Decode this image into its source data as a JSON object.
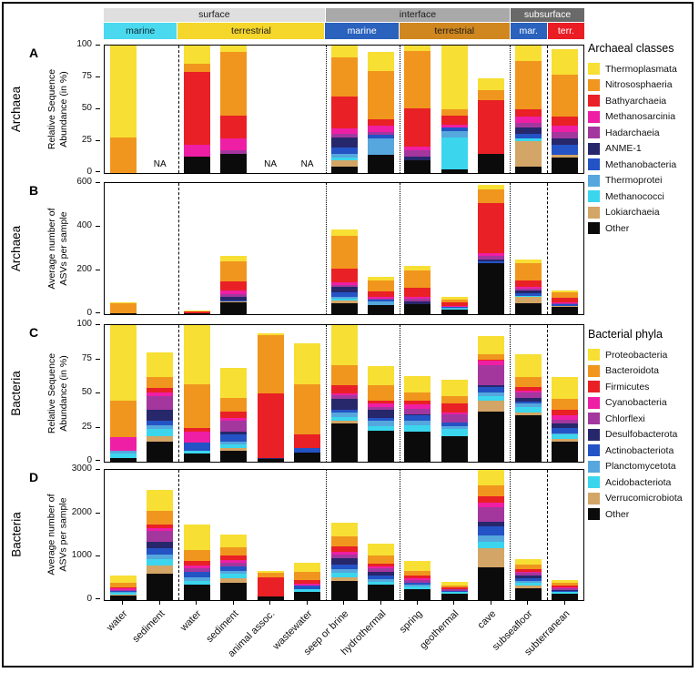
{
  "categories": [
    "water",
    "sediment",
    "water",
    "sediment",
    "animal assoc.",
    "wastewater",
    "seep or brine",
    "hydrothermal",
    "spring",
    "geothermal",
    "cave",
    "subseafloor",
    "subterranean"
  ],
  "headers": {
    "row1": [
      {
        "label": "surface",
        "span": 6,
        "bg": "#DFDFDF",
        "fg": "#1a1a1a"
      },
      {
        "label": "interface",
        "span": 5,
        "bg": "#A9A9A9",
        "fg": "#1a1a1a"
      },
      {
        "label": "subsurface",
        "span": 2,
        "bg": "#696969",
        "fg": "#ffffff"
      }
    ],
    "row2": [
      {
        "label": "marine",
        "span": 2,
        "bg": "#4AD9EF",
        "fg": "#0d2a33"
      },
      {
        "label": "terrestrial",
        "span": 4,
        "bg": "#F5D62B",
        "fg": "#1a1a1a"
      },
      {
        "label": "marine",
        "span": 2,
        "bg": "#2A62BE",
        "fg": "#ffffff"
      },
      {
        "label": "terrestrial",
        "span": 3,
        "bg": "#D0871F",
        "fg": "#1a1a1a"
      },
      {
        "label": "mar.",
        "span": 1,
        "bg": "#2A62BE",
        "fg": "#ffffff"
      },
      {
        "label": "terr.",
        "span": 1,
        "bg": "#EA1C24",
        "fg": "#ffffff"
      }
    ]
  },
  "separators": [
    {
      "after": 2,
      "style": "dashed"
    },
    {
      "after": 6,
      "style": "dotted"
    },
    {
      "after": 8,
      "style": "dotted"
    },
    {
      "after": 11,
      "style": "dotted"
    },
    {
      "after": 12,
      "style": "dashed"
    }
  ],
  "legend_archaea": {
    "title": "Archaeal classes",
    "items": [
      {
        "label": "Thermoplasmata",
        "color": "#F7DF34"
      },
      {
        "label": "Nitrososphaeria",
        "color": "#F0961E"
      },
      {
        "label": "Bathyarchaeia",
        "color": "#E92025"
      },
      {
        "label": "Methanosarcinia",
        "color": "#EE1FA4"
      },
      {
        "label": "Hadarchaeia",
        "color": "#A3379E"
      },
      {
        "label": "ANME-1",
        "color": "#27276B"
      },
      {
        "label": "Methanobacteria",
        "color": "#2453C5"
      },
      {
        "label": "Thermoprotei",
        "color": "#55A7DD"
      },
      {
        "label": "Methanococci",
        "color": "#3BD6ED"
      },
      {
        "label": "Lokiarchaeia",
        "color": "#D3A566"
      },
      {
        "label": "Other",
        "color": "#0B0B0B"
      }
    ]
  },
  "legend_bacteria": {
    "title": "Bacterial phyla",
    "items": [
      {
        "label": "Proteobacteria",
        "color": "#F7DF34"
      },
      {
        "label": "Bacteroidota",
        "color": "#F0961E"
      },
      {
        "label": "Firmicutes",
        "color": "#E92025"
      },
      {
        "label": "Cyanobacteria",
        "color": "#EE1FA4"
      },
      {
        "label": "Chlorflexi",
        "color": "#A3379E"
      },
      {
        "label": "Desulfobacterota",
        "color": "#27276B"
      },
      {
        "label": "Actinobacteriota",
        "color": "#2453C5"
      },
      {
        "label": "Planctomycetota",
        "color": "#55A7DD"
      },
      {
        "label": "Acidobacteriota",
        "color": "#3BD6ED"
      },
      {
        "label": "Verrucomicrobiota",
        "color": "#D3A566"
      },
      {
        "label": "Other",
        "color": "#0B0B0B"
      }
    ]
  },
  "chart_data": [
    {
      "id": "A",
      "type": "bar",
      "stacked": true,
      "group": "Archaea",
      "palette": "archaea",
      "ylabel": "Relative Sequence\nAbundance (in %)",
      "ylim": [
        0,
        100
      ],
      "yticks": [
        0,
        25,
        50,
        75,
        100
      ],
      "na_label": "NA",
      "na_positions": [
        1,
        4,
        5
      ],
      "bars": [
        [
          72,
          28,
          0,
          0,
          0,
          0,
          0,
          0,
          0,
          0,
          0
        ],
        [],
        [
          14,
          7,
          57,
          9,
          0,
          0,
          0,
          0,
          0,
          0,
          13
        ],
        [
          5,
          50,
          18,
          9,
          3,
          0,
          0,
          0,
          0,
          0,
          15
        ],
        [],
        [],
        [
          9,
          31,
          25,
          4,
          3,
          8,
          5,
          3,
          2,
          5,
          5
        ],
        [
          15,
          38,
          5,
          5,
          2,
          0,
          3,
          13,
          0,
          0,
          14
        ],
        [
          4,
          45,
          30,
          3,
          5,
          3,
          0,
          0,
          0,
          0,
          10
        ],
        [
          50,
          5,
          7,
          2,
          0,
          0,
          3,
          5,
          25,
          0,
          3
        ],
        [
          9,
          8,
          42,
          0,
          0,
          0,
          0,
          0,
          0,
          0,
          15
        ],
        [
          12,
          38,
          6,
          5,
          3,
          5,
          4,
          0,
          2,
          20,
          5
        ],
        [
          20,
          33,
          7,
          5,
          5,
          5,
          8,
          0,
          0,
          2,
          12
        ]
      ]
    },
    {
      "id": "B",
      "type": "bar",
      "stacked": true,
      "group": "Archaea",
      "palette": "archaea",
      "ylabel": "Average number of\nASVs per sample",
      "ylim": [
        0,
        600
      ],
      "yticks": [
        0,
        200,
        400,
        600
      ],
      "na_positions": [],
      "bars": [
        [
          4,
          45,
          0,
          0,
          0,
          0,
          0,
          0,
          0,
          0,
          6
        ],
        [],
        [
          2,
          2,
          8,
          0,
          0,
          0,
          0,
          0,
          0,
          0,
          5
        ],
        [
          25,
          90,
          40,
          20,
          12,
          15,
          5,
          0,
          0,
          3,
          55
        ],
        [],
        [],
        [
          30,
          150,
          60,
          15,
          8,
          25,
          20,
          8,
          8,
          14,
          50
        ],
        [
          15,
          50,
          25,
          10,
          5,
          0,
          8,
          15,
          0,
          0,
          42
        ],
        [
          20,
          80,
          40,
          10,
          10,
          15,
          0,
          0,
          0,
          0,
          45
        ],
        [
          10,
          15,
          15,
          3,
          0,
          0,
          3,
          5,
          5,
          0,
          22
        ],
        [
          20,
          60,
          230,
          15,
          15,
          10,
          5,
          0,
          0,
          0,
          235
        ],
        [
          15,
          80,
          30,
          10,
          5,
          15,
          10,
          0,
          5,
          28,
          52
        ],
        [
          10,
          25,
          20,
          3,
          3,
          3,
          8,
          0,
          0,
          2,
          36
        ]
      ]
    },
    {
      "id": "C",
      "type": "bar",
      "stacked": true,
      "group": "Bacteria",
      "palette": "bacteria",
      "ylabel": "Relative Sequence\nAbundance (in %)",
      "ylim": [
        0,
        100
      ],
      "yticks": [
        0,
        25,
        50,
        75,
        100
      ],
      "na_positions": [],
      "bars": [
        [
          55,
          27,
          0,
          10,
          0,
          0,
          0,
          2,
          3,
          0,
          3
        ],
        [
          18,
          8,
          3,
          3,
          10,
          8,
          3,
          3,
          5,
          4,
          15
        ],
        [
          43,
          32,
          3,
          8,
          0,
          0,
          6,
          0,
          2,
          0,
          6
        ],
        [
          22,
          10,
          5,
          2,
          8,
          2,
          5,
          2,
          3,
          2,
          8
        ],
        [
          1,
          43,
          47,
          0,
          0,
          1,
          0,
          0,
          0,
          0,
          2
        ],
        [
          30,
          37,
          10,
          0,
          0,
          0,
          3,
          0,
          0,
          0,
          7
        ],
        [
          29,
          15,
          6,
          1,
          3,
          8,
          2,
          3,
          3,
          2,
          28
        ],
        [
          14,
          11,
          2,
          3,
          2,
          6,
          2,
          4,
          3,
          0,
          23
        ],
        [
          12,
          6,
          3,
          3,
          4,
          1,
          4,
          3,
          5,
          0,
          22
        ],
        [
          12,
          5,
          7,
          1,
          6,
          0,
          3,
          2,
          5,
          0,
          19
        ],
        [
          13,
          4,
          1,
          3,
          15,
          1,
          4,
          3,
          3,
          8,
          37
        ],
        [
          17,
          7,
          3,
          1,
          4,
          3,
          1,
          3,
          4,
          2,
          34
        ],
        [
          16,
          8,
          4,
          3,
          3,
          3,
          4,
          1,
          3,
          2,
          15
        ]
      ]
    },
    {
      "id": "D",
      "type": "bar",
      "stacked": true,
      "group": "Bacteria",
      "palette": "bacteria",
      "ylabel": "Average number of\nASVs per sample",
      "ylim": [
        0,
        3000
      ],
      "yticks": [
        0,
        1000,
        2000,
        3000
      ],
      "na_positions": [],
      "bars": [
        [
          170,
          110,
          20,
          40,
          10,
          0,
          30,
          30,
          30,
          10,
          120
        ],
        [
          500,
          300,
          100,
          50,
          250,
          150,
          150,
          100,
          150,
          200,
          600
        ],
        [
          600,
          250,
          100,
          70,
          80,
          0,
          120,
          80,
          100,
          0,
          350
        ],
        [
          300,
          200,
          100,
          50,
          100,
          0,
          100,
          70,
          100,
          100,
          400
        ],
        [
          50,
          100,
          450,
          0,
          0,
          0,
          0,
          0,
          0,
          0,
          80
        ],
        [
          220,
          180,
          100,
          40,
          0,
          0,
          80,
          0,
          50,
          0,
          200
        ],
        [
          300,
          250,
          120,
          50,
          100,
          150,
          100,
          80,
          100,
          80,
          450
        ],
        [
          270,
          180,
          80,
          40,
          80,
          80,
          80,
          60,
          80,
          0,
          350
        ],
        [
          220,
          120,
          60,
          30,
          60,
          0,
          60,
          40,
          60,
          0,
          250
        ],
        [
          90,
          40,
          40,
          0,
          40,
          0,
          30,
          0,
          40,
          0,
          150
        ],
        [
          400,
          250,
          150,
          100,
          350,
          100,
          200,
          150,
          150,
          450,
          750
        ],
        [
          130,
          100,
          60,
          30,
          60,
          60,
          60,
          50,
          60,
          60,
          280
        ],
        [
          80,
          60,
          40,
          20,
          30,
          20,
          40,
          0,
          30,
          0,
          150
        ]
      ]
    }
  ]
}
